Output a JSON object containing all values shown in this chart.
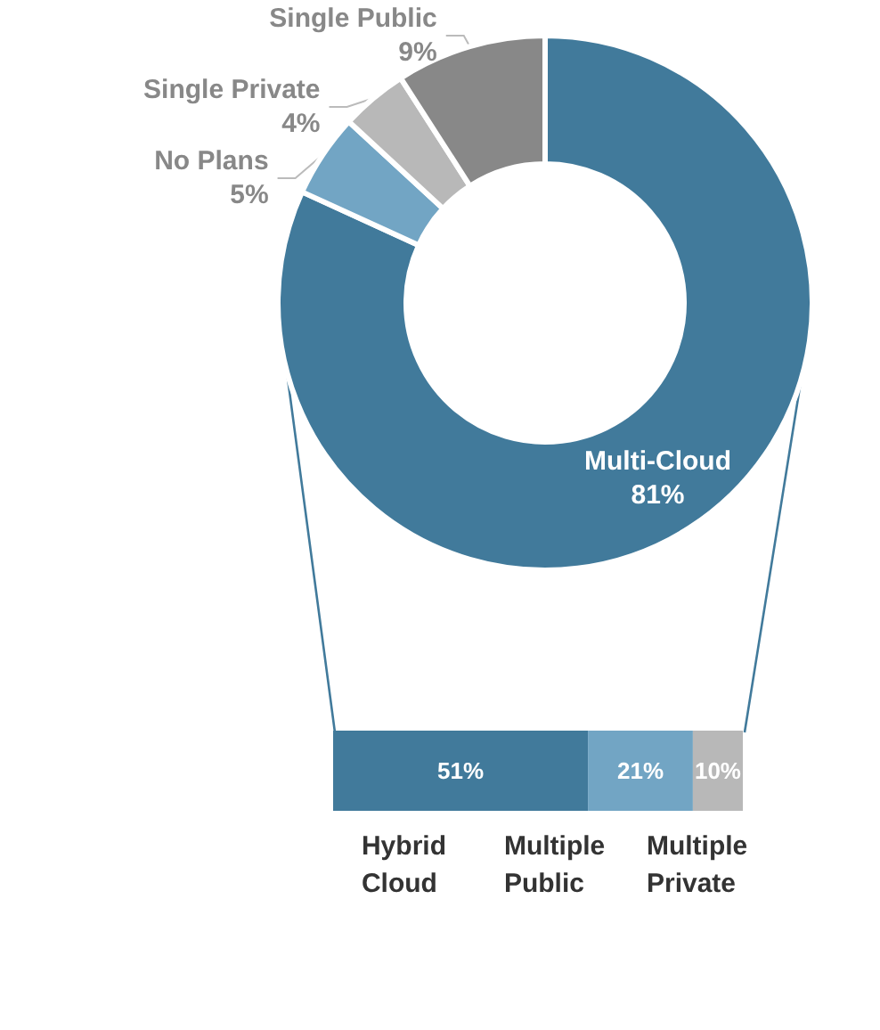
{
  "chart_data": [
    {
      "type": "donut",
      "categories": [
        "Multi-Cloud",
        "No Plans",
        "Single Private",
        "Single Public"
      ],
      "values": [
        81,
        5,
        4,
        9
      ],
      "colors": [
        "#417a9b",
        "#72a5c4",
        "#b8b8b8",
        "#888888"
      ],
      "value_labels": [
        "81%",
        "5%",
        "4%",
        "9%"
      ],
      "legend": false
    },
    {
      "type": "bar",
      "orientation": "horizontal",
      "stacked": true,
      "categories": [
        null
      ],
      "series": [
        {
          "name": "Hybrid Cloud",
          "color": "#417a9b",
          "values": [
            51
          ],
          "value_labels": [
            "51%"
          ]
        },
        {
          "name": "Multiple Public",
          "color": "#72a5c4",
          "values": [
            21
          ],
          "value_labels": [
            "21%"
          ]
        },
        {
          "name": "Multiple Private",
          "color": "#b8b8b8",
          "values": [
            10
          ],
          "value_labels": [
            "10%"
          ]
        }
      ],
      "legend": false
    }
  ]
}
